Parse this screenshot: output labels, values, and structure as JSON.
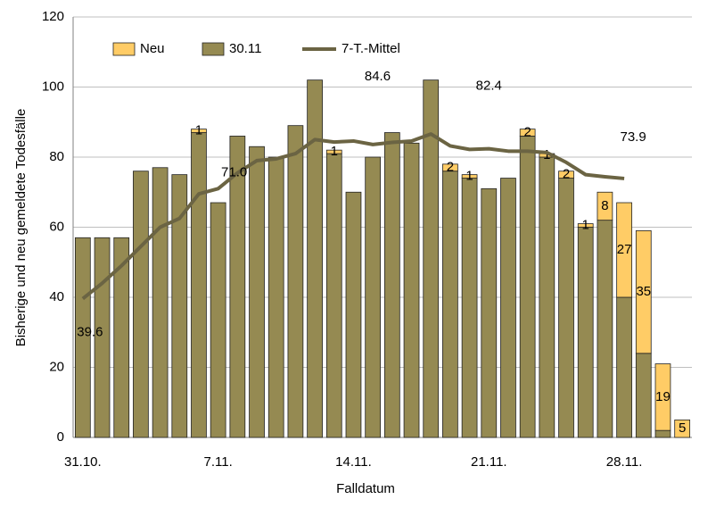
{
  "chart_data": {
    "type": "bar",
    "categories": [
      "31.10.",
      null,
      null,
      null,
      null,
      null,
      null,
      "7.11.",
      null,
      null,
      null,
      null,
      null,
      null,
      "14.11.",
      null,
      null,
      null,
      null,
      null,
      null,
      "21.11.",
      null,
      null,
      null,
      null,
      null,
      null,
      "28.11.",
      null,
      null,
      null
    ],
    "series": [
      {
        "name": "Neu",
        "color": "#ffcc66",
        "stack": true,
        "values": [
          0,
          0,
          0,
          0,
          0,
          0,
          1,
          0,
          0,
          0,
          0,
          0,
          0,
          1,
          0,
          0,
          0,
          0,
          0,
          2,
          1,
          0,
          0,
          2,
          1,
          2,
          1,
          8,
          27,
          35,
          19,
          5
        ]
      },
      {
        "name": "30.11",
        "color": "#958a52",
        "values": [
          57,
          57,
          57,
          76,
          77,
          75,
          87,
          67,
          86,
          83,
          80,
          89,
          102,
          81,
          70,
          80,
          87,
          84,
          102,
          76,
          74,
          71,
          74,
          86,
          80,
          74,
          60,
          62,
          40,
          24,
          2,
          0
        ]
      },
      {
        "name": "7-T.-Mittel",
        "color": "#6b6443",
        "type": "line",
        "values": [
          39.6,
          44,
          49,
          54.5,
          60,
          62.5,
          69.5,
          71.0,
          75.5,
          79,
          79.5,
          81,
          85,
          84.3,
          84.6,
          83.6,
          84.2,
          84.6,
          86.6,
          83.2,
          82.2,
          82.4,
          81.7,
          81.7,
          81.3,
          78.5,
          75,
          74.4,
          73.9,
          null,
          null,
          null
        ],
        "value_labels": [
          "39.6",
          null,
          null,
          null,
          null,
          null,
          null,
          "71.0",
          null,
          null,
          null,
          null,
          null,
          null,
          "84.6",
          null,
          null,
          null,
          null,
          null,
          null,
          "82.4",
          null,
          null,
          null,
          null,
          null,
          null,
          "73.9",
          null,
          null,
          null
        ]
      }
    ],
    "ylim": [
      0,
      120
    ],
    "yticks": [
      0,
      20,
      40,
      60,
      80,
      100,
      120
    ],
    "grid": true,
    "xlabel": "Falldatum",
    "ylabel": "Bisherige und neu gemeldete Todesfälle",
    "legend": "top-left"
  }
}
